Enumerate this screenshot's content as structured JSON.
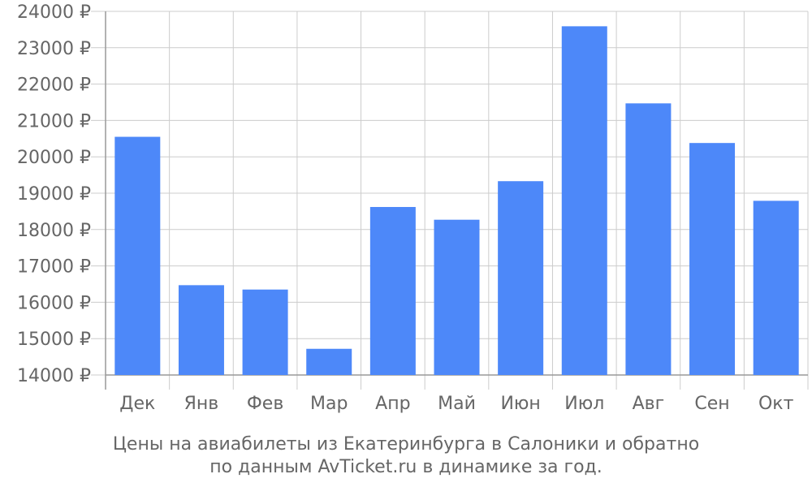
{
  "colors": {
    "bar": "#4d88f9",
    "grid": "#cccccc",
    "axis": "#999999",
    "text": "#666666"
  },
  "chart_data": {
    "type": "bar",
    "categories": [
      "Дек",
      "Янв",
      "Фев",
      "Мар",
      "Апр",
      "Май",
      "Июн",
      "Июл",
      "Авг",
      "Сен",
      "Окт"
    ],
    "values": [
      20550,
      16470,
      16350,
      14720,
      18620,
      18270,
      19330,
      23590,
      21470,
      20380,
      18790
    ],
    "y_ticks": [
      14000,
      15000,
      16000,
      17000,
      18000,
      19000,
      20000,
      21000,
      22000,
      23000,
      24000
    ],
    "y_tick_suffix": " ₽",
    "ylim": [
      14000,
      24000
    ],
    "grid": true,
    "title": "Цены на авиабилеты из Екатеринбурга в Салоники и обратно",
    "subtitle": "по данным AvTicket.ru в динамике за год."
  }
}
